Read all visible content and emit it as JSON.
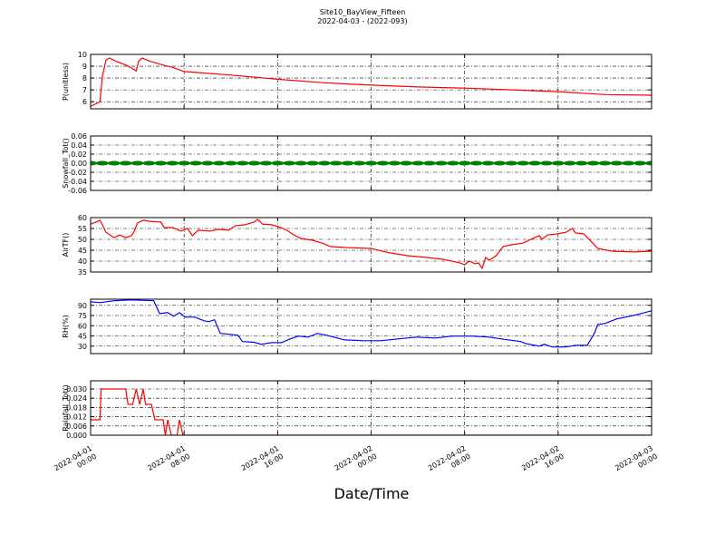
{
  "title": "Site10_BayView_Fifteen",
  "subtitle": "2022-04-03 - (2022-093)",
  "x_axis": {
    "label": "Date/Time",
    "xlim": [
      "2022-04-01 00:00",
      "2022-04-03 00:00"
    ],
    "xticks": [
      "2022-04-01 00:00",
      "2022-04-01 08:00",
      "2022-04-01 16:00",
      "2022-04-02 00:00",
      "2022-04-02 08:00",
      "2022-04-02 16:00",
      "2022-04-03 00:00"
    ]
  },
  "chart_data": [
    {
      "type": "line",
      "ylabel": "P(unitless)",
      "color": "#ff0000",
      "grid": true,
      "ylim": [
        5.4,
        10
      ],
      "yticks": [
        6,
        7,
        8,
        9,
        10
      ],
      "x": [
        "2022-04-01 00:00",
        "2022-04-01 00:30",
        "2022-04-01 00:48",
        "2022-04-01 01:00",
        "2022-04-01 01:18",
        "2022-04-01 01:36",
        "2022-04-01 02:12",
        "2022-04-01 03:00",
        "2022-04-01 03:30",
        "2022-04-01 03:54",
        "2022-04-01 04:06",
        "2022-04-01 04:24",
        "2022-04-01 05:00",
        "2022-04-01 06:00",
        "2022-04-01 07:00",
        "2022-04-01 08:00",
        "2022-04-01 12:00",
        "2022-04-01 16:00",
        "2022-04-01 20:00",
        "2022-04-02 00:00",
        "2022-04-02 04:00",
        "2022-04-02 08:00",
        "2022-04-02 12:00",
        "2022-04-02 16:00",
        "2022-04-02 20:00",
        "2022-04-03 00:00"
      ],
      "values": [
        5.6,
        5.85,
        6.0,
        8.1,
        9.5,
        9.7,
        9.4,
        9.1,
        8.85,
        8.6,
        9.4,
        9.7,
        9.45,
        9.15,
        8.9,
        8.55,
        8.25,
        7.9,
        7.6,
        7.4,
        7.25,
        7.15,
        7.0,
        6.85,
        6.6,
        6.55
      ]
    },
    {
      "type": "scatter",
      "ylabel": "Snowfall_Tot()",
      "color": "#008000",
      "grid": true,
      "ylim": [
        -0.06,
        0.06
      ],
      "yticks": [
        -0.06,
        -0.04,
        -0.02,
        {
          "value": 0,
          "label": "0.00"
        },
        0.02,
        0.04,
        0.06
      ],
      "x": [
        "2022-04-01 00:00",
        "2022-04-01 01:00",
        "2022-04-01 02:00",
        "2022-04-01 03:00",
        "2022-04-01 04:00",
        "2022-04-01 05:00",
        "2022-04-01 06:00",
        "2022-04-01 07:00",
        "2022-04-01 08:00",
        "2022-04-01 09:00",
        "2022-04-01 10:00",
        "2022-04-01 11:00",
        "2022-04-01 12:00",
        "2022-04-01 13:00",
        "2022-04-01 14:00",
        "2022-04-01 15:00",
        "2022-04-01 16:00",
        "2022-04-01 17:00",
        "2022-04-01 18:00",
        "2022-04-01 19:00",
        "2022-04-01 20:00",
        "2022-04-01 21:00",
        "2022-04-01 22:00",
        "2022-04-01 23:00",
        "2022-04-02 00:00",
        "2022-04-02 01:00",
        "2022-04-02 02:00",
        "2022-04-02 03:00",
        "2022-04-02 04:00",
        "2022-04-02 05:00",
        "2022-04-02 06:00",
        "2022-04-02 07:00",
        "2022-04-02 08:00",
        "2022-04-02 09:00",
        "2022-04-02 10:00",
        "2022-04-02 11:00",
        "2022-04-02 12:00",
        "2022-04-02 13:00",
        "2022-04-02 14:00",
        "2022-04-02 15:00",
        "2022-04-02 16:00",
        "2022-04-02 17:00",
        "2022-04-02 18:00",
        "2022-04-02 19:00",
        "2022-04-02 20:00",
        "2022-04-02 21:00",
        "2022-04-02 22:00",
        "2022-04-02 23:00",
        "2022-04-03 00:00"
      ],
      "values": [
        0,
        0,
        0,
        0,
        0,
        0,
        0,
        0,
        0,
        0,
        0,
        0,
        0,
        0,
        0,
        0,
        0,
        0,
        0,
        0,
        0,
        0,
        0,
        0,
        0,
        0,
        0,
        0,
        0,
        0,
        0,
        0,
        0,
        0,
        0,
        0,
        0,
        0,
        0,
        0,
        0,
        0,
        0,
        0,
        0,
        0,
        0,
        0,
        0
      ]
    },
    {
      "type": "line",
      "ylabel": "AirTF()",
      "color": "#ff0000",
      "grid": true,
      "ylim": [
        35,
        60
      ],
      "yticks": [
        35,
        40,
        45,
        50,
        55,
        60
      ],
      "x": [
        "2022-04-01 00:00",
        "2022-04-01 00:30",
        "2022-04-01 00:48",
        "2022-04-01 01:00",
        "2022-04-01 01:18",
        "2022-04-01 02:00",
        "2022-04-01 02:30",
        "2022-04-01 03:00",
        "2022-04-01 03:30",
        "2022-04-01 03:42",
        "2022-04-01 04:00",
        "2022-04-01 04:30",
        "2022-04-01 05:00",
        "2022-04-01 06:00",
        "2022-04-01 06:18",
        "2022-04-01 07:00",
        "2022-04-01 07:45",
        "2022-04-01 08:18",
        "2022-04-01 08:42",
        "2022-04-01 09:12",
        "2022-04-01 10:12",
        "2022-04-01 10:54",
        "2022-04-01 11:48",
        "2022-04-01 12:24",
        "2022-04-01 13:12",
        "2022-04-01 14:00",
        "2022-04-01 14:18",
        "2022-04-01 14:42",
        "2022-04-01 15:30",
        "2022-04-01 16:18",
        "2022-04-01 16:54",
        "2022-04-01 17:24",
        "2022-04-01 18:00",
        "2022-04-01 19:00",
        "2022-04-01 19:48",
        "2022-04-01 20:30",
        "2022-04-01 21:42",
        "2022-04-02 00:00",
        "2022-04-02 01:36",
        "2022-04-02 03:06",
        "2022-04-02 04:42",
        "2022-04-02 06:12",
        "2022-04-02 07:36",
        "2022-04-02 08:00",
        "2022-04-02 08:24",
        "2022-04-02 08:54",
        "2022-04-02 09:12",
        "2022-04-02 09:30",
        "2022-04-02 09:48",
        "2022-04-02 10:06",
        "2022-04-02 10:42",
        "2022-04-02 11:18",
        "2022-04-02 12:00",
        "2022-04-02 13:00",
        "2022-04-02 14:00",
        "2022-04-02 14:24",
        "2022-04-02 14:36",
        "2022-04-02 15:06",
        "2022-04-02 15:54",
        "2022-04-02 16:42",
        "2022-04-02 17:12",
        "2022-04-02 17:30",
        "2022-04-02 18:12",
        "2022-04-02 18:48",
        "2022-04-02 19:24",
        "2022-04-02 20:36",
        "2022-04-02 22:30",
        "2022-04-03 00:00"
      ],
      "values": [
        57,
        58,
        58.8,
        56.7,
        53.3,
        50.8,
        52,
        50.8,
        51.7,
        53.3,
        57.5,
        58.8,
        58.3,
        58,
        55.4,
        55.4,
        53.8,
        55,
        51.7,
        54.2,
        53.8,
        54.6,
        54.2,
        56.3,
        56.7,
        58,
        59.2,
        57,
        56.7,
        55.4,
        53.8,
        52,
        50.4,
        49.6,
        48.3,
        46.7,
        46.3,
        45.8,
        43.8,
        42.5,
        41.7,
        40.8,
        39.2,
        38.3,
        40,
        38.8,
        39.2,
        36.7,
        41.7,
        40.4,
        42.5,
        46.7,
        47.5,
        48.3,
        50.8,
        51.7,
        50,
        52,
        52.5,
        53.3,
        55,
        52.9,
        52.5,
        49.2,
        45.8,
        44.6,
        44.2,
        44.6
      ]
    },
    {
      "type": "line",
      "ylabel": "RH(%)",
      "color": "#0000ff",
      "grid": true,
      "ylim": [
        19,
        99
      ],
      "yticks": [
        30,
        45,
        60,
        75,
        90
      ],
      "x": [
        "2022-04-01 00:00",
        "2022-04-01 00:48",
        "2022-04-01 02:00",
        "2022-04-01 03:30",
        "2022-04-01 05:24",
        "2022-04-01 05:54",
        "2022-04-01 06:36",
        "2022-04-01 07:06",
        "2022-04-01 07:36",
        "2022-04-01 08:06",
        "2022-04-01 08:54",
        "2022-04-01 09:42",
        "2022-04-01 10:06",
        "2022-04-01 10:36",
        "2022-04-01 11:06",
        "2022-04-01 12:00",
        "2022-04-01 12:36",
        "2022-04-01 13:00",
        "2022-04-01 14:00",
        "2022-04-01 14:36",
        "2022-04-01 15:30",
        "2022-04-01 16:18",
        "2022-04-01 17:06",
        "2022-04-01 17:48",
        "2022-04-01 18:36",
        "2022-04-01 19:24",
        "2022-04-01 20:12",
        "2022-04-01 21:42",
        "2022-04-01 23:18",
        "2022-04-02 00:48",
        "2022-04-02 02:24",
        "2022-04-02 03:54",
        "2022-04-02 05:30",
        "2022-04-02 07:00",
        "2022-04-02 08:36",
        "2022-04-02 10:06",
        "2022-04-02 11:42",
        "2022-04-02 12:48",
        "2022-04-02 13:12",
        "2022-04-02 14:24",
        "2022-04-02 14:48",
        "2022-04-02 15:30",
        "2022-04-02 16:42",
        "2022-04-02 17:30",
        "2022-04-02 18:30",
        "2022-04-02 19:06",
        "2022-04-02 19:24",
        "2022-04-02 20:00",
        "2022-04-02 21:00",
        "2022-04-02 22:30",
        "2022-04-03 00:00"
      ],
      "values": [
        95.3,
        94,
        96.7,
        98,
        96.7,
        78,
        79.3,
        74,
        79.3,
        72.7,
        72.7,
        67.3,
        66,
        68.7,
        48.7,
        47.3,
        46,
        36.7,
        35.7,
        32.7,
        35.3,
        35,
        40.7,
        44.7,
        43.3,
        48.7,
        46,
        39.3,
        38,
        38,
        40.7,
        43.3,
        42,
        44.7,
        44.7,
        43.3,
        39.3,
        36.7,
        34,
        30,
        32.7,
        28.7,
        28.7,
        31.3,
        31.3,
        48.7,
        62,
        63.3,
        70,
        75.3,
        82
      ]
    },
    {
      "type": "line",
      "ylabel": "Rainfall_Tot()",
      "color": "#ff0000",
      "grid": true,
      "ylim": [
        0,
        0.0353
      ],
      "yticks": [
        {
          "value": 0,
          "label": "0.000"
        },
        0.006,
        0.012,
        0.018,
        0.024,
        {
          "value": 0.03,
          "label": "0.030"
        }
      ],
      "x": [
        "2022-04-01 00:00",
        "2022-04-01 00:48",
        "2022-04-01 00:54",
        "2022-04-01 03:00",
        "2022-04-01 03:12",
        "2022-04-01 03:36",
        "2022-04-01 03:54",
        "2022-04-01 04:12",
        "2022-04-01 04:30",
        "2022-04-01 04:42",
        "2022-04-01 05:12",
        "2022-04-01 05:30",
        "2022-04-01 06:12",
        "2022-04-01 06:24",
        "2022-04-01 06:36",
        "2022-04-01 06:54",
        "2022-04-01 07:24",
        "2022-04-01 07:36",
        "2022-04-01 07:54",
        "2022-04-03 00:00"
      ],
      "values": [
        0.01,
        0.01,
        0.03,
        0.03,
        0.02,
        0.02,
        0.03,
        0.02,
        0.03,
        0.02,
        0.02,
        0.01,
        0.01,
        0,
        0.01,
        0,
        0,
        0.01,
        0,
        0
      ]
    }
  ]
}
